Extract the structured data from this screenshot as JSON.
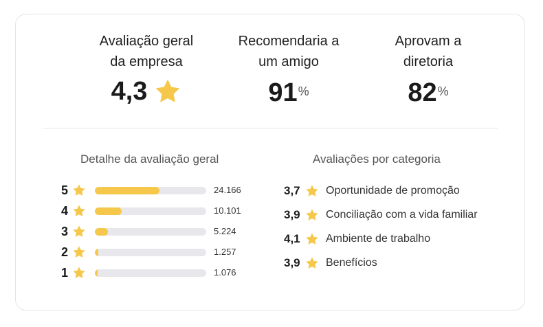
{
  "colors": {
    "star": "#f5c84b",
    "bar_track": "#e8e8ec"
  },
  "summary": {
    "overall": {
      "title_line1": "Avaliação geral",
      "title_line2": "da empresa",
      "value": "4,3",
      "icon": "star-icon"
    },
    "recommend": {
      "title_line1": "Recomendaria a",
      "title_line2": "um amigo",
      "value": "91",
      "unit": "%"
    },
    "approve": {
      "title_line1": "Aprovam a",
      "title_line2": "diretoria",
      "value": "82",
      "unit": "%"
    }
  },
  "breakdown": {
    "title": "Detalhe da avaliação geral",
    "rows": [
      {
        "stars": "5",
        "count": "24.166",
        "fraction": 0.58
      },
      {
        "stars": "4",
        "count": "10.101",
        "fraction": 0.24
      },
      {
        "stars": "3",
        "count": "5.224",
        "fraction": 0.12
      },
      {
        "stars": "2",
        "count": "1.257",
        "fraction": 0.03
      },
      {
        "stars": "1",
        "count": "1.076",
        "fraction": 0.025
      }
    ]
  },
  "categories": {
    "title": "Avaliações por categoria",
    "items": [
      {
        "score": "3,7",
        "label": "Oportunidade de promoção"
      },
      {
        "score": "3,9",
        "label": "Conciliação com a vida familiar"
      },
      {
        "score": "4,1",
        "label": "Ambiente de trabalho"
      },
      {
        "score": "3,9",
        "label": "Benefícios"
      }
    ]
  }
}
